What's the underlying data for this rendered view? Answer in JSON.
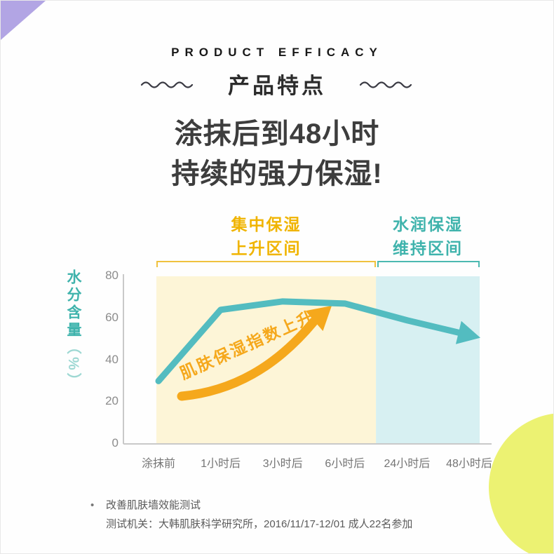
{
  "page": {
    "header_en": "PRODUCT EFFICACY",
    "header_cn": "产品特点",
    "headline_line1": "涂抹后到48小时",
    "headline_line2": "持续的强力保湿!"
  },
  "chart_data": {
    "type": "line",
    "title": "涂抹后到48小时持续的强力保湿",
    "ylabel": "水分含量",
    "ylabel_unit": "（%）",
    "xlabel": "",
    "ylim": [
      0,
      80
    ],
    "yticks": [
      80,
      60,
      40,
      20,
      0
    ],
    "categories": [
      "涂抹前",
      "1小时后",
      "3小时后",
      "6小时后",
      "24小时后",
      "48小时后"
    ],
    "values": [
      30,
      64,
      68,
      67,
      59,
      52
    ],
    "line_color": "#53bcc0",
    "grid": "off",
    "legend": "none",
    "regions": [
      {
        "label_line1": "集中保湿",
        "label_line2": "上升区间",
        "color": "#fdf5d7",
        "accent": "#f0b400",
        "from_category": "涂抹前",
        "to_category": "6小时后"
      },
      {
        "label_line1": "水润保湿",
        "label_line2": "维持区间",
        "color": "#d7f0f2",
        "accent": "#3fb3ac",
        "from_category": "24小时后",
        "to_category": "48小时后"
      }
    ],
    "annotation": {
      "text": "肌肤保湿指数上升",
      "color": "#f5a81c"
    }
  },
  "footnote": {
    "bullet": "•",
    "line1": "改善肌肤墙效能测试",
    "line2": "测试机关：大韩肌肤科学研究所，2016/11/17-12/01 成人22名参加"
  }
}
